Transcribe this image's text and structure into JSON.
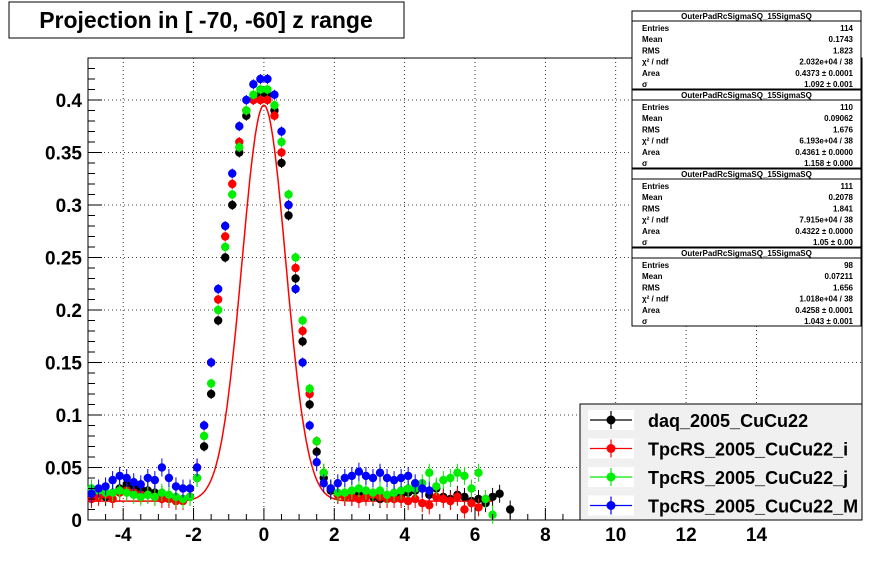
{
  "chart_data": {
    "type": "scatter",
    "title": "Projection in [ -70, -60] z range",
    "xlabel": "",
    "ylabel": "",
    "xlim": [
      -5,
      17
    ],
    "ylim": [
      0,
      0.44
    ],
    "x_ticks": [
      -4,
      -2,
      0,
      2,
      4,
      6,
      8,
      10,
      12,
      14
    ],
    "y_ticks": [
      0,
      0.05,
      0.1,
      0.15,
      0.2,
      0.25,
      0.3,
      0.35,
      0.4
    ],
    "grid": true,
    "legend_position": "bottom-right",
    "stats_position": "top-right",
    "series": [
      {
        "name": "daq_2005_CuCu22",
        "color": "#000000",
        "stats": {
          "header": "OuterPadRcSigmaSQ_15SigmaSQ",
          "rows": [
            {
              "label": "Entries",
              "value": "114"
            },
            {
              "label": "Mean",
              "value": "0.1743"
            },
            {
              "label": "RMS",
              "value": "1.823"
            },
            {
              "label": "χ² / ndf",
              "value": "2.032e+04 / 38"
            },
            {
              "label": "Area",
              "value": "0.4373 ± 0.0001"
            },
            {
              "label": "σ",
              "value": "1.092 ± 0.001"
            }
          ]
        },
        "x": [
          -4.9,
          -4.7,
          -4.5,
          -4.3,
          -4.1,
          -3.9,
          -3.7,
          -3.5,
          -3.3,
          -3.1,
          -2.9,
          -2.7,
          -2.5,
          -2.3,
          -2.1,
          -1.9,
          -1.7,
          -1.5,
          -1.3,
          -1.1,
          -0.9,
          -0.7,
          -0.5,
          -0.3,
          -0.1,
          0.1,
          0.3,
          0.5,
          0.7,
          0.9,
          1.1,
          1.3,
          1.5,
          1.7,
          1.9,
          2.1,
          2.3,
          2.5,
          2.7,
          2.9,
          3.1,
          3.3,
          3.5,
          3.7,
          3.9,
          4.1,
          4.3,
          4.5,
          4.7,
          4.9,
          5.1,
          5.3,
          5.5,
          5.7,
          5.9,
          6.1,
          6.3,
          6.5,
          6.7,
          7.0
        ],
        "y": [
          0.022,
          0.024,
          0.022,
          0.026,
          0.03,
          0.034,
          0.032,
          0.03,
          0.028,
          0.026,
          0.024,
          0.022,
          0.02,
          0.02,
          0.022,
          0.04,
          0.07,
          0.12,
          0.19,
          0.25,
          0.3,
          0.35,
          0.385,
          0.4,
          0.405,
          0.405,
          0.39,
          0.34,
          0.29,
          0.23,
          0.17,
          0.11,
          0.065,
          0.04,
          0.028,
          0.024,
          0.022,
          0.022,
          0.024,
          0.024,
          0.022,
          0.02,
          0.022,
          0.024,
          0.022,
          0.026,
          0.028,
          0.03,
          0.024,
          0.03,
          0.022,
          0.02,
          0.024,
          0.022,
          0.018,
          0.02,
          0.016,
          0.022,
          0.025,
          0.01
        ]
      },
      {
        "name": "TpcRS_2005_CuCu22_i",
        "color": "#ff0000",
        "stats": {
          "header": "OuterPadRcSigmaSQ_15SigmaSQ",
          "rows": [
            {
              "label": "Entries",
              "value": "110"
            },
            {
              "label": "Mean",
              "value": "0.09062"
            },
            {
              "label": "RMS",
              "value": "1.676"
            },
            {
              "label": "χ² / ndf",
              "value": "6.193e+04 / 38"
            },
            {
              "label": "Area",
              "value": "0.4361 ± 0.0000"
            },
            {
              "label": "σ",
              "value": "1.158 ± 0.000"
            }
          ]
        },
        "x": [
          -4.9,
          -4.7,
          -4.5,
          -4.3,
          -4.1,
          -3.9,
          -3.7,
          -3.5,
          -3.3,
          -3.1,
          -2.9,
          -2.7,
          -2.5,
          -2.3,
          -2.1,
          -1.9,
          -1.7,
          -1.5,
          -1.3,
          -1.1,
          -0.9,
          -0.7,
          -0.5,
          -0.3,
          -0.1,
          0.1,
          0.3,
          0.5,
          0.7,
          0.9,
          1.1,
          1.3,
          1.5,
          1.7,
          1.9,
          2.1,
          2.3,
          2.5,
          2.7,
          2.9,
          3.1,
          3.3,
          3.5,
          3.7,
          3.9,
          4.1,
          4.3,
          4.5,
          4.7,
          4.9,
          5.1,
          5.3,
          5.5,
          5.7,
          5.9,
          6.1
        ],
        "y": [
          0.02,
          0.022,
          0.024,
          0.02,
          0.026,
          0.028,
          0.026,
          0.024,
          0.024,
          0.022,
          0.02,
          0.02,
          0.018,
          0.018,
          0.022,
          0.05,
          0.09,
          0.15,
          0.21,
          0.27,
          0.32,
          0.36,
          0.39,
          0.4,
          0.4,
          0.4,
          0.385,
          0.35,
          0.3,
          0.24,
          0.18,
          0.12,
          0.075,
          0.045,
          0.03,
          0.024,
          0.022,
          0.022,
          0.02,
          0.022,
          0.024,
          0.022,
          0.02,
          0.02,
          0.02,
          0.018,
          0.02,
          0.016,
          0.014,
          0.022,
          0.02,
          0.018,
          0.022,
          0.01,
          0.016,
          0.012
        ]
      },
      {
        "name": "TpcRS_2005_CuCu22_j",
        "color": "#00ee00",
        "stats": {
          "header": "OuterPadRcSigmaSQ_15SigmaSQ",
          "rows": [
            {
              "label": "Entries",
              "value": "111"
            },
            {
              "label": "Mean",
              "value": "0.2078"
            },
            {
              "label": "RMS",
              "value": "1.841"
            },
            {
              "label": "χ² / ndf",
              "value": "7.915e+04 / 38"
            },
            {
              "label": "Area",
              "value": "0.4322 ± 0.0000"
            },
            {
              "label": "σ",
              "value": "1.05 ± 0.00"
            }
          ]
        },
        "x": [
          -4.9,
          -4.7,
          -4.5,
          -4.3,
          -4.1,
          -3.9,
          -3.7,
          -3.5,
          -3.3,
          -3.1,
          -2.9,
          -2.7,
          -2.5,
          -2.3,
          -2.1,
          -1.9,
          -1.7,
          -1.5,
          -1.3,
          -1.1,
          -0.9,
          -0.7,
          -0.5,
          -0.3,
          -0.1,
          0.1,
          0.3,
          0.5,
          0.7,
          0.9,
          1.1,
          1.3,
          1.5,
          1.7,
          1.9,
          2.1,
          2.3,
          2.5,
          2.7,
          2.9,
          3.1,
          3.3,
          3.5,
          3.7,
          3.9,
          4.1,
          4.3,
          4.5,
          4.7,
          4.9,
          5.1,
          5.3,
          5.5,
          5.7,
          5.9,
          6.1,
          6.3,
          6.5
        ],
        "y": [
          0.03,
          0.028,
          0.026,
          0.026,
          0.028,
          0.026,
          0.024,
          0.022,
          0.024,
          0.022,
          0.026,
          0.024,
          0.022,
          0.02,
          0.022,
          0.04,
          0.08,
          0.13,
          0.2,
          0.26,
          0.31,
          0.355,
          0.39,
          0.405,
          0.41,
          0.41,
          0.395,
          0.36,
          0.31,
          0.25,
          0.19,
          0.125,
          0.075,
          0.045,
          0.03,
          0.026,
          0.026,
          0.028,
          0.03,
          0.028,
          0.026,
          0.028,
          0.024,
          0.026,
          0.028,
          0.03,
          0.03,
          0.035,
          0.045,
          0.032,
          0.038,
          0.04,
          0.045,
          0.042,
          0.03,
          0.045,
          0.02,
          0.005
        ]
      },
      {
        "name": "TpcRS_2005_CuCu22_M",
        "color": "#0000ff",
        "stats": {
          "header": "OuterPadRcSigmaSQ_15SigmaSQ",
          "rows": [
            {
              "label": "Entries",
              "value": "98"
            },
            {
              "label": "Mean",
              "value": "0.07211"
            },
            {
              "label": "RMS",
              "value": "1.656"
            },
            {
              "label": "χ² / ndf",
              "value": "1.018e+04 / 38"
            },
            {
              "label": "Area",
              "value": "0.4258 ± 0.0001"
            },
            {
              "label": "σ",
              "value": "1.043 ± 0.001"
            }
          ]
        },
        "x": [
          -4.9,
          -4.7,
          -4.5,
          -4.3,
          -4.1,
          -3.9,
          -3.7,
          -3.5,
          -3.3,
          -3.1,
          -2.9,
          -2.7,
          -2.5,
          -2.3,
          -2.1,
          -1.9,
          -1.7,
          -1.5,
          -1.3,
          -1.1,
          -0.9,
          -0.7,
          -0.5,
          -0.3,
          -0.1,
          0.1,
          0.3,
          0.5,
          0.7,
          0.9,
          1.1,
          1.3,
          1.5,
          1.7,
          1.9,
          2.1,
          2.3,
          2.5,
          2.7,
          2.9,
          3.1,
          3.3,
          3.5,
          3.7,
          3.9,
          4.1,
          4.3,
          4.5,
          4.7
        ],
        "y": [
          0.025,
          0.03,
          0.032,
          0.038,
          0.042,
          0.04,
          0.036,
          0.034,
          0.04,
          0.038,
          0.05,
          0.04,
          0.032,
          0.03,
          0.03,
          0.05,
          0.09,
          0.15,
          0.22,
          0.28,
          0.33,
          0.375,
          0.4,
          0.415,
          0.42,
          0.42,
          0.405,
          0.37,
          0.3,
          0.22,
          0.15,
          0.09,
          0.055,
          0.035,
          0.03,
          0.035,
          0.04,
          0.042,
          0.046,
          0.042,
          0.04,
          0.045,
          0.04,
          0.038,
          0.04,
          0.042,
          0.035,
          0.03,
          0.028
        ]
      }
    ],
    "fit_curve": {
      "color": "#ff0000",
      "peak": 0.395,
      "sigma": 0.62,
      "base": 0.018
    }
  }
}
